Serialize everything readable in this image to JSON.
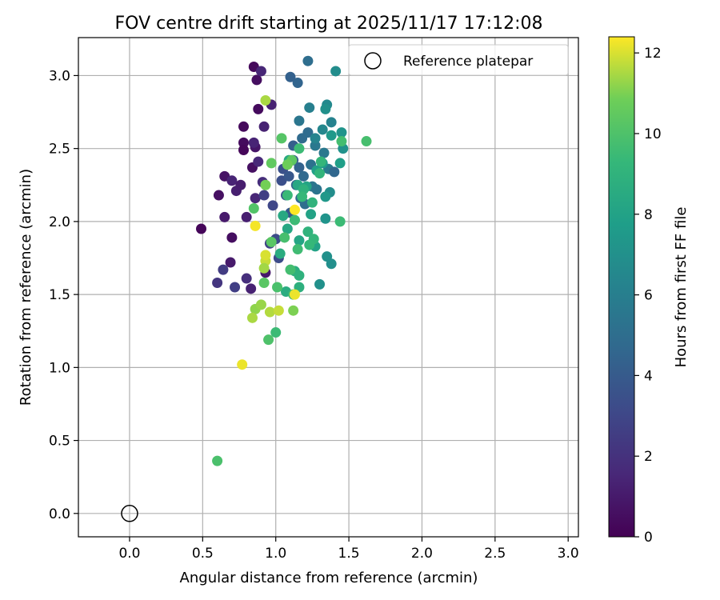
{
  "chart_data": {
    "type": "scatter",
    "title": "FOV centre drift starting at 2025/11/17 17:12:08",
    "xlabel": "Angular distance from reference (arcmin)",
    "ylabel": "Rotation from reference (arcmin)",
    "xlim": [
      -0.35,
      3.07
    ],
    "ylim": [
      -0.16,
      3.26
    ],
    "xticks": [
      0.0,
      0.5,
      1.0,
      1.5,
      2.0,
      2.5,
      3.0
    ],
    "xtick_labels": [
      "0.0",
      "0.5",
      "1.0",
      "1.5",
      "2.0",
      "2.5",
      "3.0"
    ],
    "yticks": [
      0.0,
      0.5,
      1.0,
      1.5,
      2.0,
      2.5,
      3.0
    ],
    "ytick_labels": [
      "0.0",
      "0.5",
      "1.0",
      "1.5",
      "2.0",
      "2.5",
      "3.0"
    ],
    "grid": true,
    "legend": {
      "location": "top-right",
      "entries": [
        {
          "label": "Reference platepar",
          "marker": "hollow-circle"
        }
      ]
    },
    "reference": {
      "x": 0.0,
      "y": 0.0,
      "label": "Reference platepar"
    },
    "colorbar": {
      "label": "Hours from first FF file",
      "range": [
        0,
        12.4
      ],
      "ticks": [
        0,
        2,
        4,
        6,
        8,
        10,
        12
      ],
      "tick_labels": [
        "0",
        "2",
        "4",
        "6",
        "8",
        "10",
        "12"
      ],
      "colormap": "viridis"
    },
    "points": [
      [
        0.49,
        1.95,
        0.2
      ],
      [
        0.61,
        2.18,
        0.6
      ],
      [
        0.65,
        2.31,
        0.7
      ],
      [
        0.7,
        1.89,
        0.5
      ],
      [
        0.78,
        2.65,
        0.3
      ],
      [
        0.78,
        2.54,
        0.4
      ],
      [
        0.78,
        2.49,
        0.2
      ],
      [
        0.85,
        3.06,
        0.3
      ],
      [
        0.87,
        2.97,
        0.5
      ],
      [
        0.88,
        2.77,
        0.4
      ],
      [
        0.84,
        2.37,
        0.6
      ],
      [
        0.86,
        2.51,
        0.8
      ],
      [
        0.65,
        2.03,
        1.0
      ],
      [
        0.69,
        1.72,
        1.0
      ],
      [
        0.73,
        2.21,
        1.2
      ],
      [
        0.7,
        2.28,
        1.4
      ],
      [
        0.76,
        2.25,
        1.1
      ],
      [
        0.8,
        2.03,
        1.2
      ],
      [
        0.83,
        1.54,
        1.3
      ],
      [
        0.85,
        2.54,
        1.4
      ],
      [
        0.86,
        2.16,
        1.5
      ],
      [
        0.88,
        2.41,
        1.6
      ],
      [
        0.9,
        3.03,
        1.5
      ],
      [
        0.92,
        2.65,
        1.3
      ],
      [
        0.97,
        2.8,
        1.3
      ],
      [
        0.91,
        2.27,
        1.8
      ],
      [
        0.93,
        1.65,
        1.0
      ],
      [
        0.8,
        1.61,
        1.9
      ],
      [
        0.6,
        1.58,
        2.2
      ],
      [
        0.64,
        1.67,
        2.5
      ],
      [
        0.72,
        1.55,
        2.6
      ],
      [
        0.92,
        2.18,
        2.6
      ],
      [
        0.96,
        1.85,
        2.8
      ],
      [
        0.98,
        2.11,
        3.0
      ],
      [
        1.0,
        1.88,
        3.2
      ],
      [
        1.02,
        1.75,
        3.2
      ],
      [
        1.04,
        2.28,
        3.4
      ],
      [
        1.05,
        2.36,
        3.5
      ],
      [
        1.07,
        2.18,
        3.6
      ],
      [
        1.09,
        2.31,
        3.8
      ],
      [
        1.1,
        2.06,
        3.9
      ],
      [
        1.12,
        2.42,
        4.0
      ],
      [
        1.12,
        2.52,
        4.2
      ],
      [
        1.14,
        2.25,
        4.4
      ],
      [
        1.15,
        2.95,
        4.5
      ],
      [
        1.16,
        2.37,
        4.4
      ],
      [
        1.17,
        2.16,
        4.6
      ],
      [
        1.18,
        2.57,
        4.8
      ],
      [
        1.19,
        2.31,
        4.7
      ],
      [
        1.2,
        2.12,
        5.0
      ],
      [
        1.22,
        2.61,
        4.9
      ],
      [
        1.22,
        3.1,
        5.0
      ],
      [
        1.24,
        2.39,
        5.2
      ],
      [
        1.25,
        2.24,
        5.4
      ],
      [
        1.27,
        2.52,
        5.6
      ],
      [
        1.28,
        2.22,
        5.3
      ],
      [
        1.1,
        2.99,
        4.3
      ],
      [
        1.16,
        2.69,
        5.5
      ],
      [
        1.33,
        2.47,
        5.6
      ],
      [
        1.36,
        2.36,
        5.8
      ],
      [
        1.4,
        2.34,
        4.6
      ],
      [
        1.38,
        2.68,
        6.2
      ],
      [
        1.23,
        2.78,
        6.0
      ],
      [
        1.27,
        2.57,
        6.3
      ],
      [
        1.32,
        2.63,
        6.5
      ],
      [
        1.35,
        2.8,
        6.6
      ],
      [
        1.41,
        3.03,
        6.8
      ],
      [
        1.3,
        1.57,
        7.0
      ],
      [
        1.35,
        1.76,
        7.0
      ],
      [
        1.38,
        1.71,
        6.9
      ],
      [
        1.37,
        2.2,
        6.8
      ],
      [
        1.34,
        2.02,
        7.2
      ],
      [
        1.34,
        2.17,
        7.4
      ],
      [
        1.34,
        2.77,
        7.0
      ],
      [
        1.45,
        2.61,
        7.2
      ],
      [
        1.38,
        2.59,
        7.5
      ],
      [
        1.46,
        2.5,
        7.1
      ],
      [
        1.44,
        2.4,
        7.8
      ],
      [
        1.32,
        2.4,
        7.7
      ],
      [
        1.28,
        2.35,
        7.9
      ],
      [
        1.24,
        2.05,
        8.0
      ],
      [
        1.27,
        1.83,
        8.0
      ],
      [
        1.21,
        2.24,
        8.1
      ],
      [
        1.16,
        1.87,
        8.2
      ],
      [
        1.15,
        2.25,
        8.3
      ],
      [
        1.08,
        1.95,
        8.3
      ],
      [
        1.09,
        2.42,
        8.5
      ],
      [
        1.05,
        2.04,
        8.4
      ],
      [
        1.03,
        1.78,
        8.6
      ],
      [
        1.07,
        1.52,
        8.6
      ],
      [
        1.13,
        1.66,
        8.7
      ],
      [
        1.16,
        1.55,
        8.8
      ],
      [
        1.16,
        1.63,
        8.9
      ],
      [
        1.19,
        2.22,
        8.9
      ],
      [
        1.22,
        1.93,
        9.0
      ],
      [
        1.25,
        2.13,
        9.0
      ],
      [
        1.26,
        1.88,
        9.2
      ],
      [
        1.3,
        2.33,
        9.1
      ],
      [
        1.31,
        2.41,
        9.2
      ],
      [
        1.18,
        2.17,
        9.3
      ],
      [
        1.08,
        2.18,
        9.4
      ],
      [
        1.13,
        2.01,
        9.5
      ],
      [
        1.16,
        2.5,
        9.5
      ],
      [
        1.15,
        1.81,
        9.6
      ],
      [
        1.12,
        1.5,
        9.6
      ],
      [
        1.45,
        2.55,
        9.7
      ],
      [
        1.44,
        2.0,
        9.5
      ],
      [
        1.62,
        2.55,
        9.8
      ],
      [
        1.23,
        1.84,
        9.3
      ],
      [
        1.0,
        1.24,
        9.5
      ],
      [
        1.01,
        1.55,
        9.9
      ],
      [
        1.06,
        1.89,
        9.8
      ],
      [
        1.1,
        1.67,
        9.7
      ],
      [
        0.6,
        0.36,
        9.9
      ],
      [
        0.95,
        1.19,
        10.0
      ],
      [
        0.85,
        2.09,
        10.1
      ],
      [
        0.92,
        1.58,
        10.3
      ],
      [
        0.97,
        1.86,
        10.3
      ],
      [
        0.97,
        2.4,
        10.5
      ],
      [
        1.04,
        2.57,
        10.2
      ],
      [
        1.11,
        2.42,
        10.4
      ],
      [
        1.12,
        1.39,
        11.0
      ],
      [
        1.08,
        2.39,
        10.8
      ],
      [
        0.93,
        2.25,
        10.9
      ],
      [
        0.86,
        1.4,
        11.2
      ],
      [
        0.9,
        1.43,
        11.3
      ],
      [
        0.84,
        1.34,
        11.5
      ],
      [
        0.93,
        2.83,
        11.5
      ],
      [
        0.96,
        1.38,
        11.6
      ],
      [
        1.02,
        1.39,
        11.8
      ],
      [
        0.93,
        1.73,
        11.8
      ],
      [
        0.93,
        1.77,
        12.0
      ],
      [
        0.92,
        1.68,
        11.4
      ],
      [
        0.77,
        1.02,
        12.2
      ],
      [
        0.86,
        1.97,
        12.3
      ],
      [
        1.13,
        1.5,
        12.2
      ],
      [
        1.13,
        2.08,
        12.4
      ]
    ]
  }
}
